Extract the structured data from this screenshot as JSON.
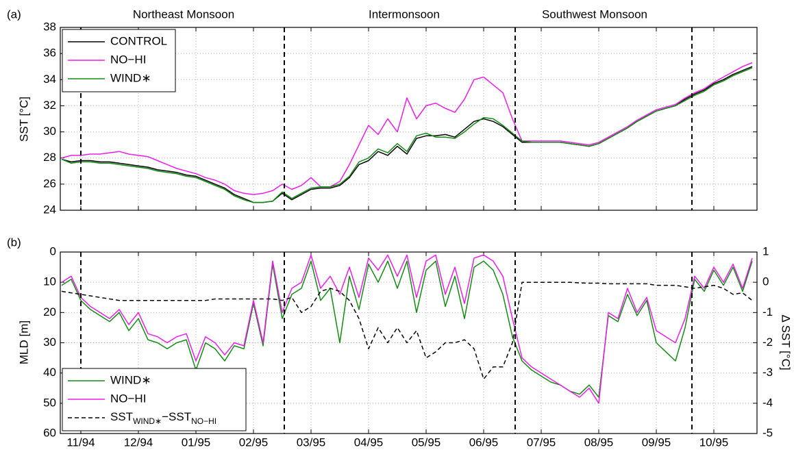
{
  "chart_data": [
    {
      "type": "line",
      "panel_label": "(a)",
      "y_label": "SST [°C]",
      "annotations": [
        "Northeast Monsoon",
        "Intermonsoon",
        "Southwest Monsoon"
      ],
      "categories": [
        null,
        null,
        "11/94",
        null,
        null,
        null,
        null,
        null,
        "12/94",
        null,
        null,
        null,
        null,
        null,
        "01/95",
        null,
        null,
        null,
        null,
        null,
        "02/95",
        null,
        null,
        null,
        null,
        null,
        "03/95",
        null,
        null,
        null,
        null,
        null,
        "04/95",
        null,
        null,
        null,
        null,
        null,
        "05/95",
        null,
        null,
        null,
        null,
        null,
        "06/95",
        null,
        null,
        null,
        null,
        null,
        "07/95",
        null,
        null,
        null,
        null,
        null,
        "08/95",
        null,
        null,
        null,
        null,
        null,
        "09/95",
        null,
        null,
        null,
        null,
        null,
        "10/95",
        null,
        null,
        null,
        null
      ],
      "ylim": [
        24,
        38
      ],
      "yticks": [
        24,
        26,
        28,
        30,
        32,
        34,
        36,
        38
      ],
      "grid": true,
      "legend": "upper left",
      "series": [
        {
          "name": "CONTROL",
          "color": "#000000",
          "values": [
            27.9,
            27.7,
            27.8,
            27.8,
            27.7,
            27.7,
            27.6,
            27.5,
            27.4,
            27.3,
            27.1,
            27.0,
            26.9,
            26.7,
            26.6,
            26.3,
            26.0,
            25.7,
            25.2,
            24.9,
            24.6,
            24.6,
            24.7,
            25.3,
            24.8,
            25.2,
            25.6,
            25.7,
            25.7,
            25.9,
            26.5,
            27.5,
            27.8,
            28.5,
            28.2,
            28.9,
            28.3,
            29.5,
            29.7,
            29.7,
            29.8,
            29.6,
            30.2,
            30.8,
            31.0,
            30.8,
            30.4,
            29.8,
            29.2,
            29.2,
            29.2,
            29.2,
            29.2,
            29.1,
            29.0,
            28.9,
            29.1,
            29.5,
            29.9,
            30.3,
            30.8,
            31.2,
            31.6,
            31.8,
            32.0,
            32.5,
            32.9,
            33.2,
            33.7,
            34.0,
            34.4,
            34.7,
            35.0
          ]
        },
        {
          "name": "NO−HI",
          "color": "#e81ee8",
          "values": [
            28.0,
            28.2,
            28.2,
            28.3,
            28.3,
            28.4,
            28.5,
            28.3,
            28.2,
            28.1,
            27.8,
            27.5,
            27.2,
            27.0,
            26.8,
            26.5,
            26.3,
            26.0,
            25.5,
            25.3,
            25.2,
            25.3,
            25.5,
            26.0,
            25.6,
            25.9,
            26.5,
            25.8,
            25.8,
            26.2,
            27.5,
            29.0,
            30.5,
            29.8,
            31.0,
            30.0,
            32.6,
            31.0,
            32.0,
            32.2,
            31.8,
            31.5,
            32.5,
            34.0,
            34.2,
            33.6,
            33.0,
            31.0,
            29.3,
            29.3,
            29.3,
            29.3,
            29.3,
            29.2,
            29.1,
            29.0,
            29.2,
            29.6,
            30.0,
            30.4,
            30.9,
            31.3,
            31.7,
            31.9,
            32.1,
            32.6,
            33.0,
            33.3,
            33.8,
            34.2,
            34.6,
            35.0,
            35.3
          ]
        },
        {
          "name": "WIND∗",
          "color": "#138a13",
          "values": [
            27.9,
            27.6,
            27.7,
            27.7,
            27.6,
            27.6,
            27.5,
            27.4,
            27.3,
            27.2,
            27.0,
            26.9,
            26.8,
            26.6,
            26.5,
            26.2,
            25.9,
            25.6,
            25.1,
            24.8,
            24.6,
            24.6,
            24.7,
            25.4,
            24.9,
            25.3,
            25.7,
            25.8,
            25.8,
            26.0,
            26.6,
            27.7,
            28.0,
            28.7,
            28.4,
            29.1,
            28.5,
            29.7,
            29.9,
            29.6,
            29.6,
            29.5,
            30.0,
            30.6,
            31.1,
            31.0,
            30.5,
            29.9,
            29.3,
            29.2,
            29.2,
            29.2,
            29.2,
            29.1,
            29.0,
            28.9,
            29.1,
            29.5,
            29.9,
            30.3,
            30.8,
            31.2,
            31.6,
            31.8,
            32.0,
            32.4,
            32.8,
            33.1,
            33.6,
            33.9,
            34.3,
            34.6,
            34.9
          ]
        }
      ]
    },
    {
      "type": "line",
      "panel_label": "(b)",
      "y_label": "MLD [m]",
      "y2_label": "Δ SST [°C]",
      "categories": [
        null,
        null,
        "11/94",
        null,
        null,
        null,
        null,
        null,
        "12/94",
        null,
        null,
        null,
        null,
        null,
        "01/95",
        null,
        null,
        null,
        null,
        null,
        "02/95",
        null,
        null,
        null,
        null,
        null,
        "03/95",
        null,
        null,
        null,
        null,
        null,
        "04/95",
        null,
        null,
        null,
        null,
        null,
        "05/95",
        null,
        null,
        null,
        null,
        null,
        "06/95",
        null,
        null,
        null,
        null,
        null,
        "07/95",
        null,
        null,
        null,
        null,
        null,
        "08/95",
        null,
        null,
        null,
        null,
        null,
        "09/95",
        null,
        null,
        null,
        null,
        null,
        "10/95",
        null,
        null,
        null,
        null
      ],
      "ylim": [
        0,
        60
      ],
      "y_inverted": true,
      "yticks": [
        0,
        10,
        20,
        30,
        40,
        50,
        60
      ],
      "y2lim": [
        -5,
        1
      ],
      "y2ticks": [
        -5,
        -4,
        -3,
        -2,
        -1,
        0,
        1
      ],
      "grid": true,
      "legend": "lower left",
      "series": [
        {
          "name": "WIND∗",
          "color": "#138a13",
          "values": [
            11,
            9,
            16,
            19,
            21,
            23,
            20,
            26,
            22,
            29,
            30,
            32,
            30,
            29,
            39,
            30,
            32,
            36,
            31,
            32,
            17,
            31,
            4,
            22,
            14,
            12,
            3,
            16,
            12,
            30,
            8,
            19,
            4,
            10,
            3,
            12,
            3,
            20,
            6,
            3,
            18,
            8,
            22,
            5,
            3,
            6,
            14,
            28,
            36,
            39,
            41,
            43,
            44,
            46,
            47,
            44,
            48,
            21,
            23,
            14,
            21,
            16,
            30,
            33,
            36,
            25,
            9,
            13,
            6,
            11,
            5,
            13,
            3
          ]
        },
        {
          "name": "NO−HI",
          "color": "#e81ee8",
          "values": [
            10,
            8,
            15,
            18,
            20,
            22,
            19,
            24,
            20,
            27,
            28,
            30,
            28,
            27,
            36,
            28,
            30,
            34,
            30,
            31,
            16,
            30,
            3,
            20,
            12,
            10,
            1,
            12,
            8,
            14,
            5,
            15,
            2,
            6,
            1,
            8,
            1,
            15,
            3,
            1,
            14,
            5,
            17,
            2,
            1,
            3,
            8,
            22,
            35,
            38,
            40,
            42,
            44,
            46,
            48,
            45,
            50,
            20,
            22,
            12,
            20,
            15,
            26,
            28,
            30,
            22,
            8,
            12,
            5,
            10,
            4,
            12,
            2
          ]
        },
        {
          "name_parts": [
            {
              "text": "SST"
            },
            {
              "text": "WIND∗",
              "sub": true
            },
            {
              "text": "−SST"
            },
            {
              "text": "NO−HI",
              "sub": true
            }
          ],
          "color": "#000000",
          "dash": true,
          "axis": "y2",
          "values": [
            -0.3,
            -0.35,
            -0.4,
            -0.45,
            -0.5,
            -0.55,
            -0.6,
            -0.6,
            -0.6,
            -0.6,
            -0.6,
            -0.6,
            -0.6,
            -0.6,
            -0.6,
            -0.6,
            -0.55,
            -0.55,
            -0.55,
            -0.55,
            -0.55,
            -0.55,
            -0.55,
            -0.6,
            -0.5,
            -1.0,
            -0.8,
            -0.3,
            -0.2,
            -0.3,
            -0.6,
            -1.2,
            -2.2,
            -1.5,
            -2.0,
            -1.5,
            -2.0,
            -1.6,
            -2.5,
            -2.3,
            -2.0,
            -2.0,
            -1.9,
            -2.2,
            -3.2,
            -2.8,
            -2.8,
            -2.0,
            0,
            0,
            0,
            0,
            0,
            0,
            -0.02,
            -0.03,
            -0.03,
            -0.05,
            -0.05,
            -0.05,
            -0.05,
            -0.05,
            -0.1,
            -0.1,
            -0.1,
            -0.15,
            -0.2,
            -0.15,
            -0.1,
            -0.2,
            -0.4,
            -0.35,
            -0.6
          ]
        }
      ]
    }
  ]
}
